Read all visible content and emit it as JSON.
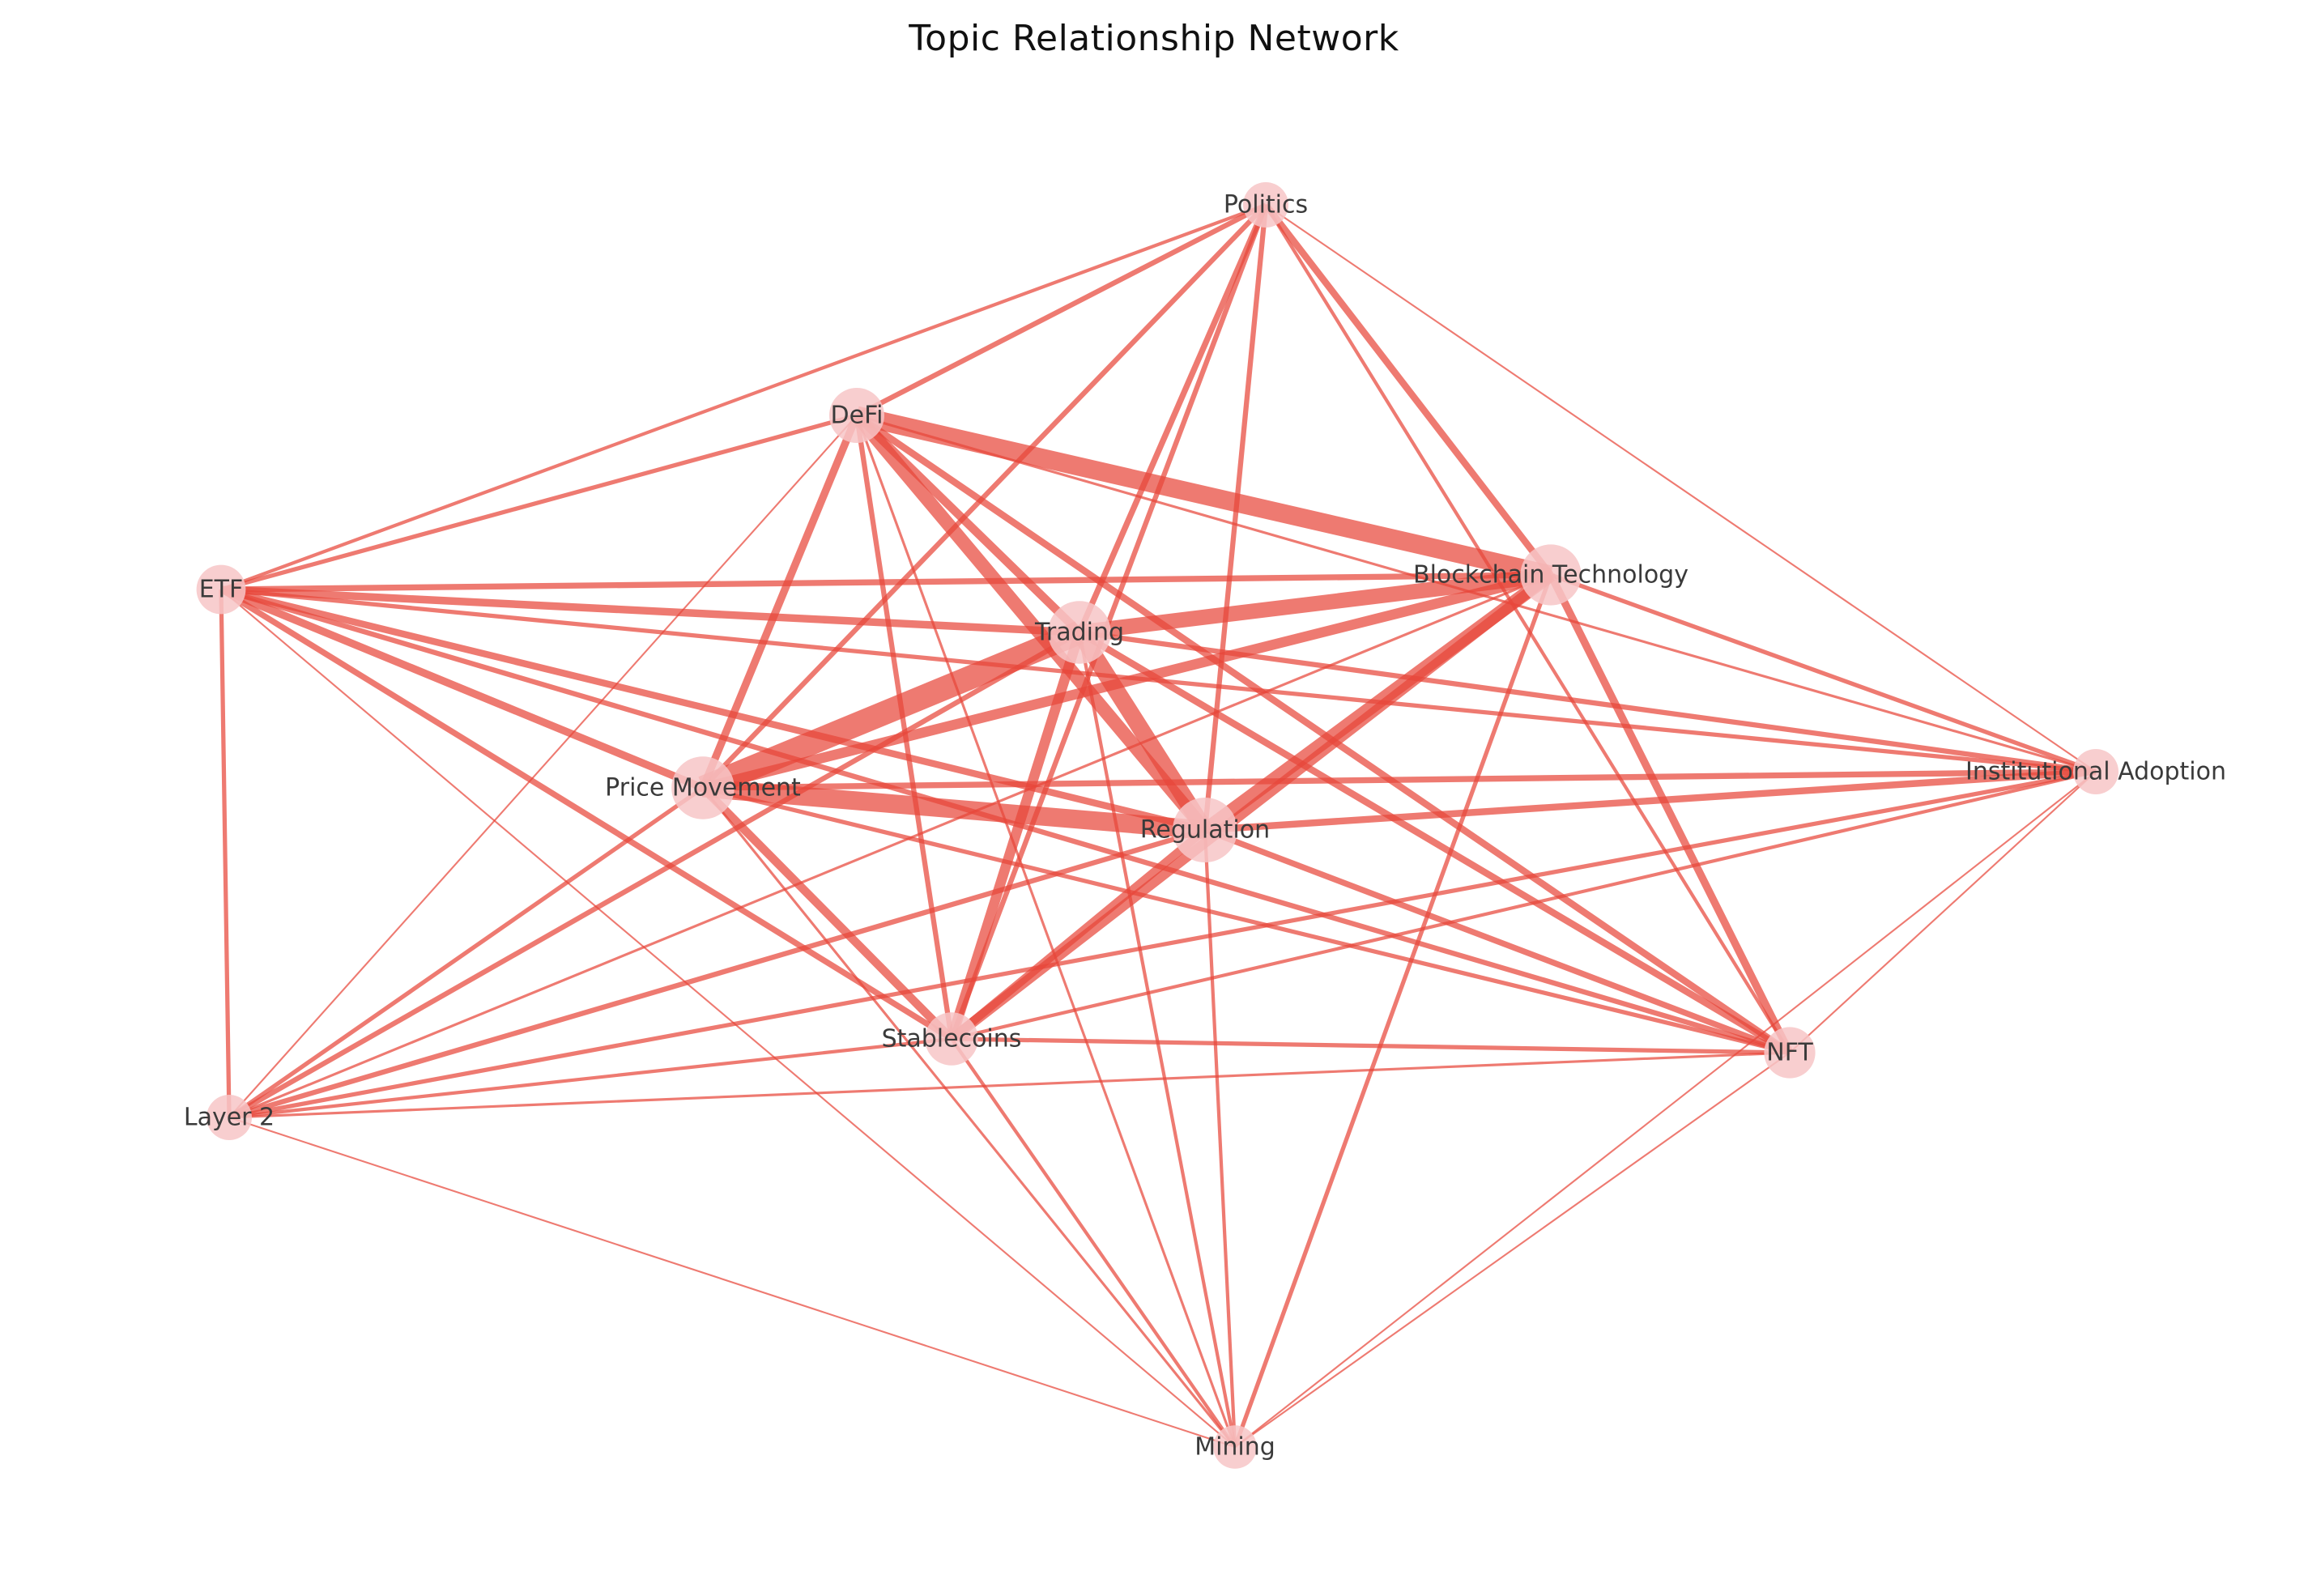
{
  "title": "Topic Relationship Network",
  "colors": {
    "edge": "#e8473a",
    "node": "#f7c6c7",
    "label": "#3a3a3a"
  },
  "nodes": [
    {
      "id": "politics",
      "label": "Politics",
      "size": 1.0
    },
    {
      "id": "defi",
      "label": "DeFi",
      "size": 1.5
    },
    {
      "id": "etf",
      "label": "ETF",
      "size": 1.2
    },
    {
      "id": "blockchain",
      "label": "Blockchain Technology",
      "size": 1.8
    },
    {
      "id": "trading",
      "label": "Trading",
      "size": 1.9
    },
    {
      "id": "price",
      "label": "Price Movement",
      "size": 1.9
    },
    {
      "id": "regulation",
      "label": "Regulation",
      "size": 2.0
    },
    {
      "id": "institutional",
      "label": "Institutional Adoption",
      "size": 1.0
    },
    {
      "id": "stablecoins",
      "label": "Stablecoins",
      "size": 1.4
    },
    {
      "id": "nft",
      "label": "NFT",
      "size": 1.3
    },
    {
      "id": "layer2",
      "label": "Layer 2",
      "size": 1.0
    },
    {
      "id": "mining",
      "label": "Mining",
      "size": 0.9
    }
  ],
  "edges": [
    [
      "defi",
      "blockchain",
      22
    ],
    [
      "defi",
      "trading",
      10
    ],
    [
      "defi",
      "regulation",
      16
    ],
    [
      "defi",
      "price",
      9
    ],
    [
      "defi",
      "stablecoins",
      6
    ],
    [
      "defi",
      "nft",
      8
    ],
    [
      "defi",
      "etf",
      5
    ],
    [
      "defi",
      "politics",
      6
    ],
    [
      "defi",
      "mining",
      3
    ],
    [
      "defi",
      "layer2",
      2
    ],
    [
      "defi",
      "institutional",
      3
    ],
    [
      "trading",
      "price",
      28
    ],
    [
      "trading",
      "regulation",
      20
    ],
    [
      "trading",
      "blockchain",
      18
    ],
    [
      "trading",
      "stablecoins",
      12
    ],
    [
      "trading",
      "etf",
      9
    ],
    [
      "trading",
      "politics",
      7
    ],
    [
      "trading",
      "nft",
      8
    ],
    [
      "trading",
      "institutional",
      6
    ],
    [
      "trading",
      "layer2",
      6
    ],
    [
      "trading",
      "mining",
      4
    ],
    [
      "price",
      "regulation",
      22
    ],
    [
      "price",
      "blockchain",
      12
    ],
    [
      "price",
      "stablecoins",
      10
    ],
    [
      "price",
      "etf",
      9
    ],
    [
      "price",
      "politics",
      6
    ],
    [
      "price",
      "institutional",
      7
    ],
    [
      "price",
      "nft",
      5
    ],
    [
      "price",
      "layer2",
      5
    ],
    [
      "price",
      "mining",
      3
    ],
    [
      "regulation",
      "blockchain",
      16
    ],
    [
      "regulation",
      "stablecoins",
      10
    ],
    [
      "regulation",
      "etf",
      8
    ],
    [
      "regulation",
      "politics",
      6
    ],
    [
      "regulation",
      "institutional",
      8
    ],
    [
      "regulation",
      "nft",
      7
    ],
    [
      "regulation",
      "layer2",
      6
    ],
    [
      "regulation",
      "mining",
      4
    ],
    [
      "blockchain",
      "stablecoins",
      12
    ],
    [
      "blockchain",
      "etf",
      7
    ],
    [
      "blockchain",
      "politics",
      8
    ],
    [
      "blockchain",
      "nft",
      9
    ],
    [
      "blockchain",
      "institutional",
      5
    ],
    [
      "blockchain",
      "layer2",
      3
    ],
    [
      "blockchain",
      "mining",
      5
    ],
    [
      "etf",
      "politics",
      4
    ],
    [
      "etf",
      "stablecoins",
      7
    ],
    [
      "etf",
      "layer2",
      5
    ],
    [
      "etf",
      "institutional",
      5
    ],
    [
      "etf",
      "nft",
      6
    ],
    [
      "etf",
      "mining",
      2
    ],
    [
      "politics",
      "stablecoins",
      6
    ],
    [
      "politics",
      "nft",
      4
    ],
    [
      "politics",
      "institutional",
      2
    ],
    [
      "stablecoins",
      "nft",
      5
    ],
    [
      "stablecoins",
      "layer2",
      4
    ],
    [
      "stablecoins",
      "institutional",
      4
    ],
    [
      "stablecoins",
      "mining",
      4
    ],
    [
      "nft",
      "layer2",
      3
    ],
    [
      "nft",
      "mining",
      2
    ],
    [
      "nft",
      "institutional",
      2
    ],
    [
      "layer2",
      "institutional",
      5
    ],
    [
      "layer2",
      "mining",
      2
    ],
    [
      "institutional",
      "mining",
      2
    ]
  ]
}
